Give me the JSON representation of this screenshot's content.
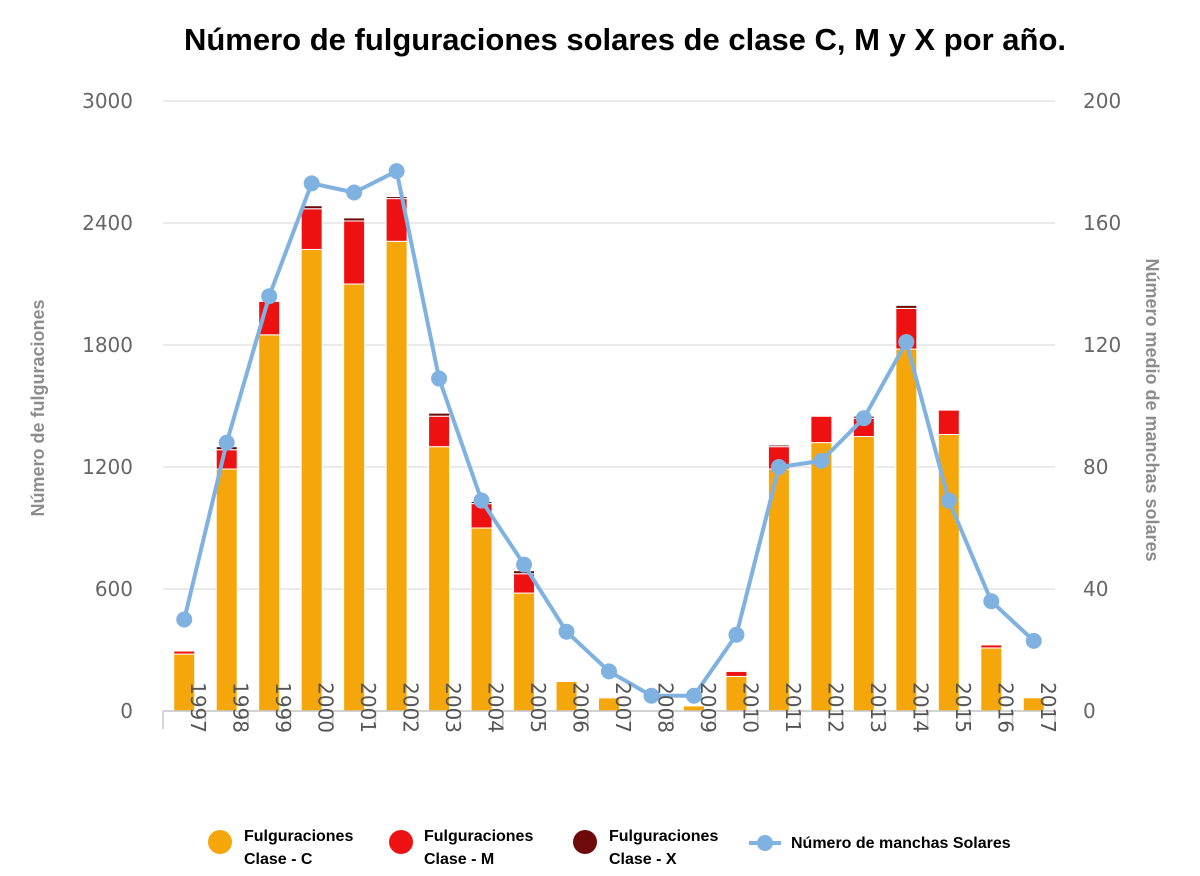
{
  "chart_data": {
    "type": "bar",
    "title": "Número de fulguraciones solares de clase C, M y X por año.",
    "ylabel": "Número de fulguraciones",
    "y2label": "Número medio de manchas solares",
    "ylim": [
      0,
      3000
    ],
    "y2lim": [
      0,
      200
    ],
    "yticks": [
      "0",
      "600",
      "1200",
      "1800",
      "2400",
      "3000"
    ],
    "y2ticks": [
      "0",
      "40",
      "80",
      "120",
      "160",
      "200"
    ],
    "grid": true,
    "legend_position": "bottom",
    "categories": [
      "1997",
      "1998",
      "1999",
      "2000",
      "2001",
      "2002",
      "2003",
      "2004",
      "2005",
      "2006",
      "2007",
      "2008",
      "2009",
      "2010",
      "2011",
      "2012",
      "2013",
      "2014",
      "2015",
      "2016",
      "2017"
    ],
    "series": [
      {
        "name": "Fulguraciones Clase - C",
        "name_lines": [
          "Fulguraciones",
          "Clase - C"
        ],
        "kind": "bar",
        "color": "#f5a60a",
        "values": [
          280,
          1190,
          1850,
          2270,
          2100,
          2310,
          1300,
          900,
          580,
          145,
          65,
          0,
          25,
          170,
          1190,
          1320,
          1350,
          1780,
          1360,
          310,
          65
        ]
      },
      {
        "name": "Fulguraciones Clase - M",
        "name_lines": [
          "Fulguraciones",
          "Clase - M"
        ],
        "kind": "bar",
        "color": "#ee1111",
        "values": [
          15,
          95,
          165,
          200,
          310,
          210,
          150,
          120,
          95,
          5,
          5,
          0,
          0,
          25,
          110,
          130,
          90,
          200,
          120,
          15,
          0
        ]
      },
      {
        "name": "Fulguraciones Clase - X",
        "name_lines": [
          "Fulguraciones",
          "Clase - X"
        ],
        "kind": "bar",
        "color": "#6e0a0a",
        "values": [
          3,
          15,
          5,
          15,
          15,
          10,
          15,
          10,
          15,
          4,
          0,
          0,
          0,
          5,
          8,
          5,
          10,
          15,
          2,
          0,
          0
        ]
      },
      {
        "name": "Número de manchas Solares",
        "name_lines": [
          "Número de manchas Solares"
        ],
        "kind": "line",
        "axis": "right",
        "color": "#7fb2e0",
        "values": [
          30,
          88,
          136,
          173,
          170,
          177,
          109,
          69,
          48,
          26,
          13,
          5,
          5,
          25,
          80,
          82,
          96,
          121,
          69,
          36,
          23
        ]
      }
    ]
  }
}
